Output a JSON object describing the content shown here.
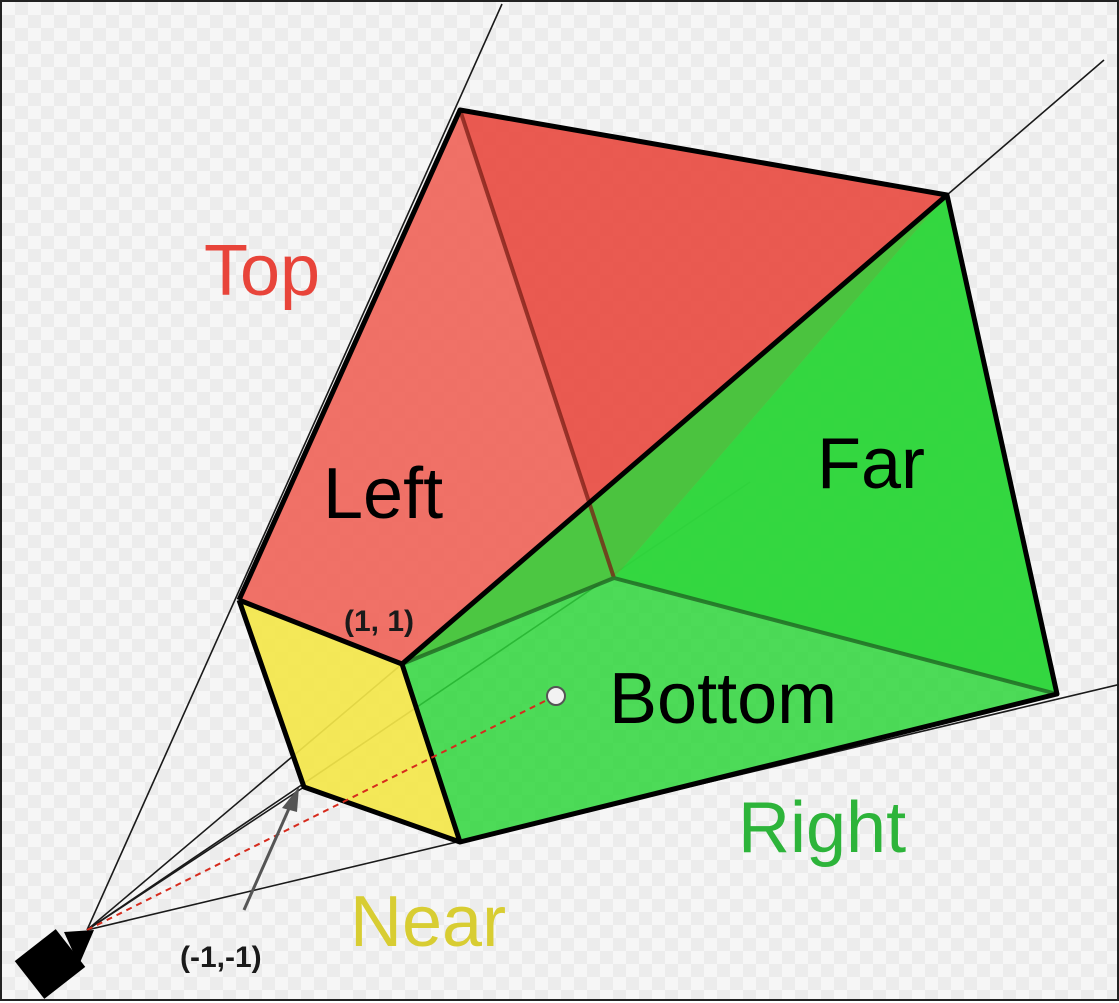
{
  "labels": {
    "top": "Top",
    "left": "Left",
    "far": "Far",
    "bottom": "Bottom",
    "right": "Right",
    "near": "Near",
    "coord_top": "(1, 1)",
    "coord_bottom": "(-1,-1)"
  },
  "colors": {
    "top": "#e8443a",
    "left": "#f06358",
    "bottom_face": "#2fd63c",
    "right_face": "#38d645",
    "near": "#f3e64a",
    "right_text": "#2db43a",
    "near_text": "#d8cd32",
    "edge": "#000000",
    "ray": "#d62a1c"
  },
  "icons": {
    "camera": "camera-icon"
  }
}
